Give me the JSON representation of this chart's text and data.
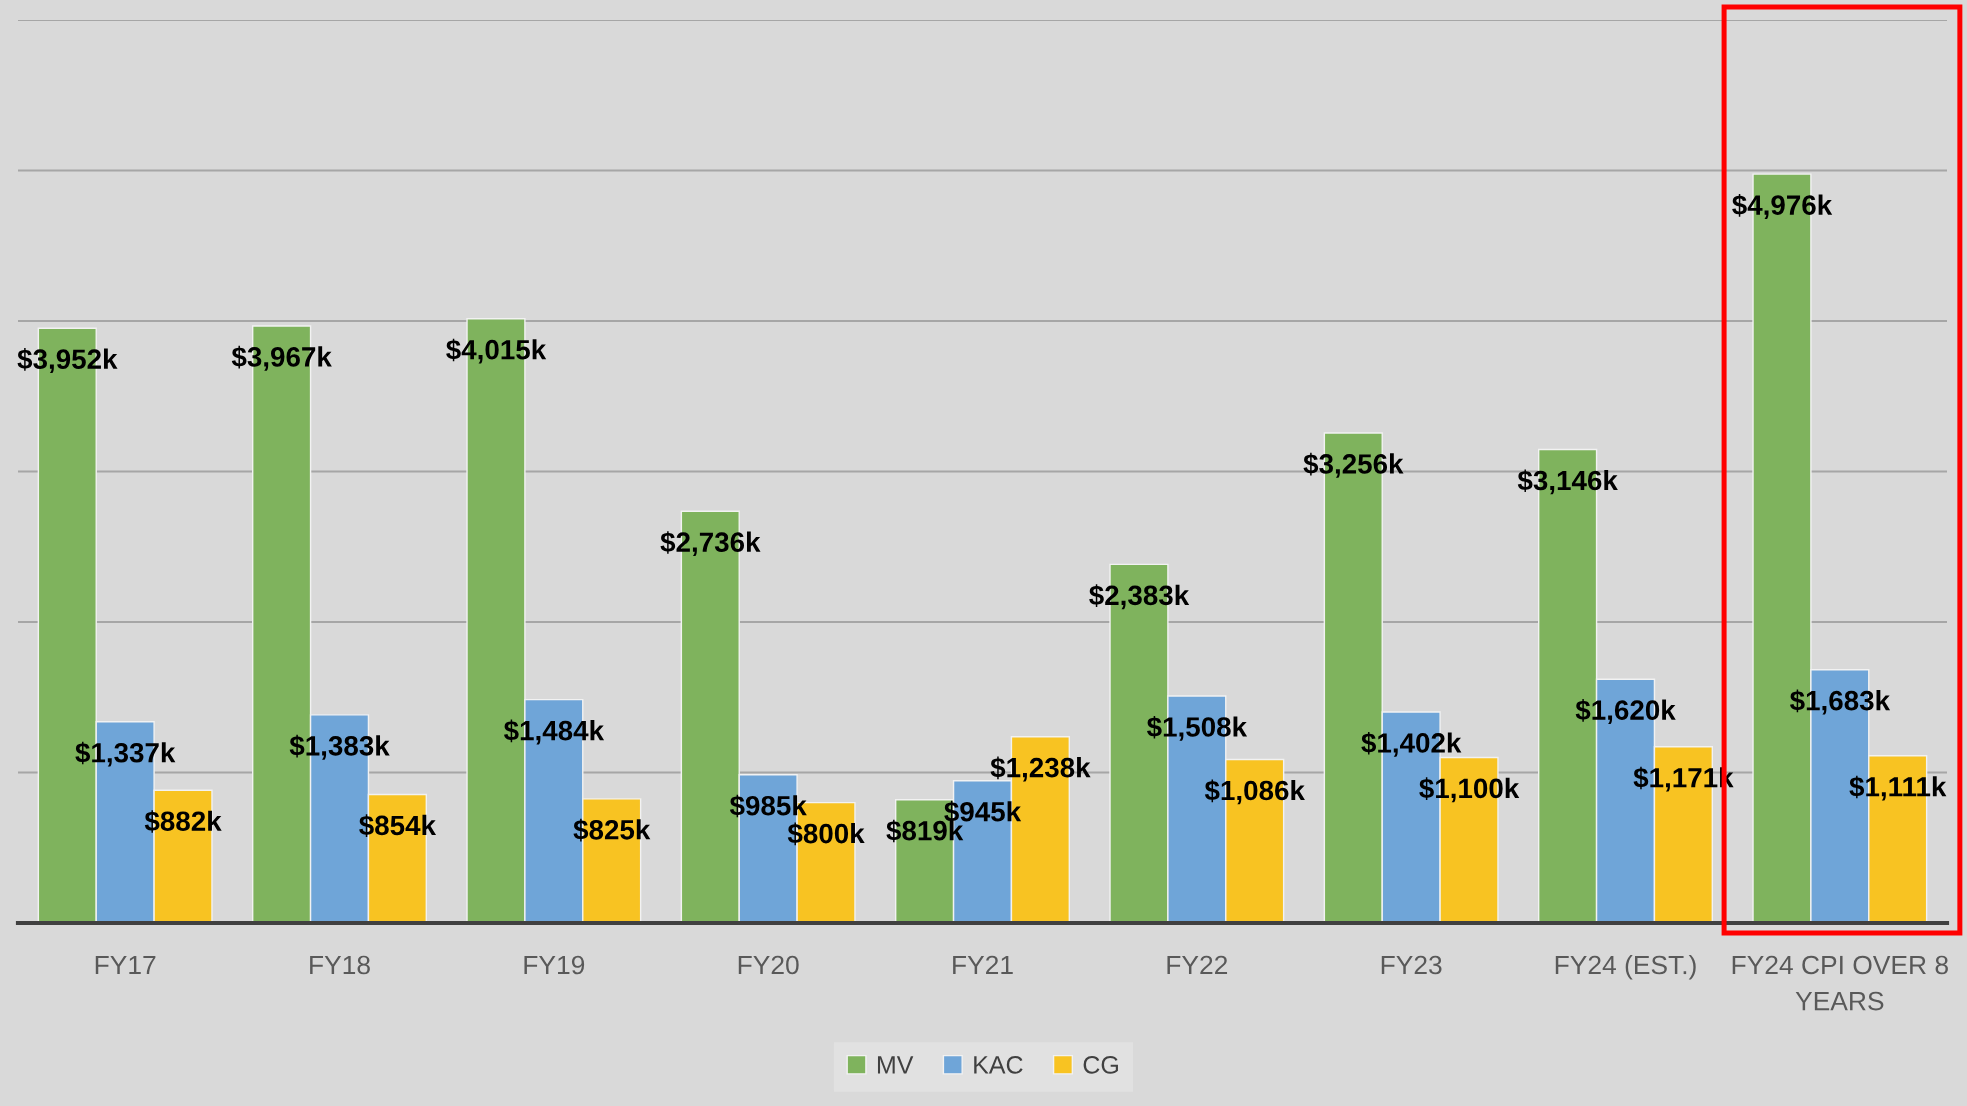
{
  "chart_data": {
    "type": "bar",
    "categories": [
      "FY17",
      "FY18",
      "FY19",
      "FY20",
      "FY21",
      "FY22",
      "FY23",
      "FY24 (EST.)",
      "FY24 CPI OVER 8 YEARS"
    ],
    "series": [
      {
        "name": "MV",
        "color": "#7fb35d",
        "values": [
          3952,
          3967,
          4015,
          2736,
          819,
          2383,
          3256,
          3146,
          4976
        ],
        "value_labels": [
          "$3,952k",
          "$3,967k",
          "$4,015k",
          "$2,736k",
          "$819k",
          "$2,383k",
          "$3,256k",
          "$3,146k",
          "$4,976k"
        ]
      },
      {
        "name": "KAC",
        "color": "#6fa5d8",
        "values": [
          1337,
          1383,
          1484,
          985,
          945,
          1508,
          1402,
          1620,
          1683
        ],
        "value_labels": [
          "$1,337k",
          "$1,383k",
          "$1,484k",
          "$985k",
          "$945k",
          "$1,508k",
          "$1,402k",
          "$1,620k",
          "$1,683k"
        ]
      },
      {
        "name": "CG",
        "color": "#f8c322",
        "values": [
          882,
          854,
          825,
          800,
          1238,
          1086,
          1100,
          1171,
          1111
        ],
        "value_labels": [
          "$882k",
          "$854k",
          "$825k",
          "$800k",
          "$1,238k",
          "$1,086k",
          "$1,100k",
          "$1,171k",
          "$1,111k"
        ]
      }
    ],
    "ylim": [
      0,
      6000
    ],
    "yticks": [
      {
        "value": 0,
        "label": null
      },
      {
        "value": 1000,
        "label": null
      },
      {
        "value": 2000,
        "label": null
      },
      {
        "value": 3000,
        "label": null
      },
      {
        "value": 4000,
        "label": null
      },
      {
        "value": 5000,
        "label": null
      },
      {
        "value": 6000,
        "label": null
      }
    ],
    "grid": "y",
    "legend": "bottom",
    "tick_labels": "x"
  }
}
